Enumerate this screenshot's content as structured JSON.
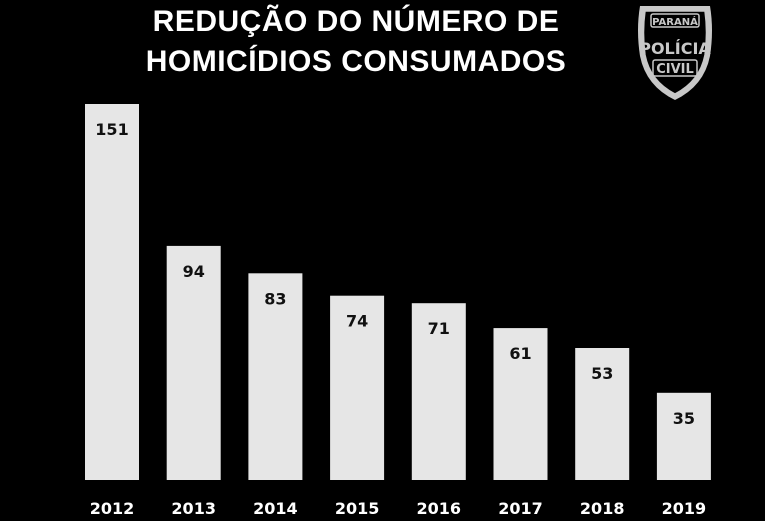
{
  "chart_data": {
    "type": "bar",
    "title": "REDUÇÃO DO NÚMERO DE HOMICÍDIOS CONSUMADOS",
    "title_lines": [
      "REDUÇÃO DO NÚMERO DE",
      "HOMICÍDIOS CONSUMADOS"
    ],
    "categories": [
      "2012",
      "2013",
      "2014",
      "2015",
      "2016",
      "2017",
      "2018",
      "2019"
    ],
    "values": [
      151,
      94,
      83,
      74,
      71,
      61,
      53,
      35
    ],
    "data_labels": [
      "151",
      "94",
      "83",
      "74",
      "71",
      "61",
      "53",
      "35"
    ],
    "xlabel": "",
    "ylabel": "",
    "ylim": [
      0,
      151
    ],
    "grid": false,
    "legend": "none",
    "bar_color": "#e6e6e6",
    "background_color": "#000000"
  },
  "badge": {
    "top_text": "PARANÁ",
    "middle_text": "POLÍCIA",
    "bottom_text": "CIVIL",
    "icon": "police-badge-icon",
    "color": "#c8c8c8"
  }
}
